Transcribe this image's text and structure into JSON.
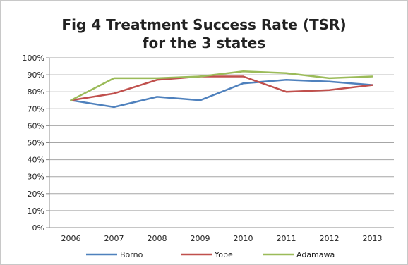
{
  "chart_data": {
    "type": "line",
    "title_lines": [
      "Fig 4 Treatment Success Rate (TSR)",
      "for the 3 states"
    ],
    "x": [
      "2006",
      "2007",
      "2008",
      "2009",
      "2010",
      "2011",
      "2012",
      "2013"
    ],
    "ylim": [
      0,
      100
    ],
    "yticks": [
      "0%",
      "10%",
      "20%",
      "30%",
      "40%",
      "50%",
      "60%",
      "70%",
      "80%",
      "90%",
      "100%"
    ],
    "grid": true,
    "legend": "bottom",
    "series": [
      {
        "name": "Borno",
        "color": "#4f81bd",
        "values": [
          75,
          71,
          77,
          75,
          85,
          87,
          86,
          84
        ]
      },
      {
        "name": "Yobe",
        "color": "#c0504d",
        "values": [
          75,
          79,
          87,
          89,
          89,
          80,
          81,
          84
        ]
      },
      {
        "name": "Adamawa",
        "color": "#9bbb59",
        "values": [
          75,
          88,
          88,
          89,
          92,
          91,
          88,
          89
        ]
      }
    ]
  }
}
